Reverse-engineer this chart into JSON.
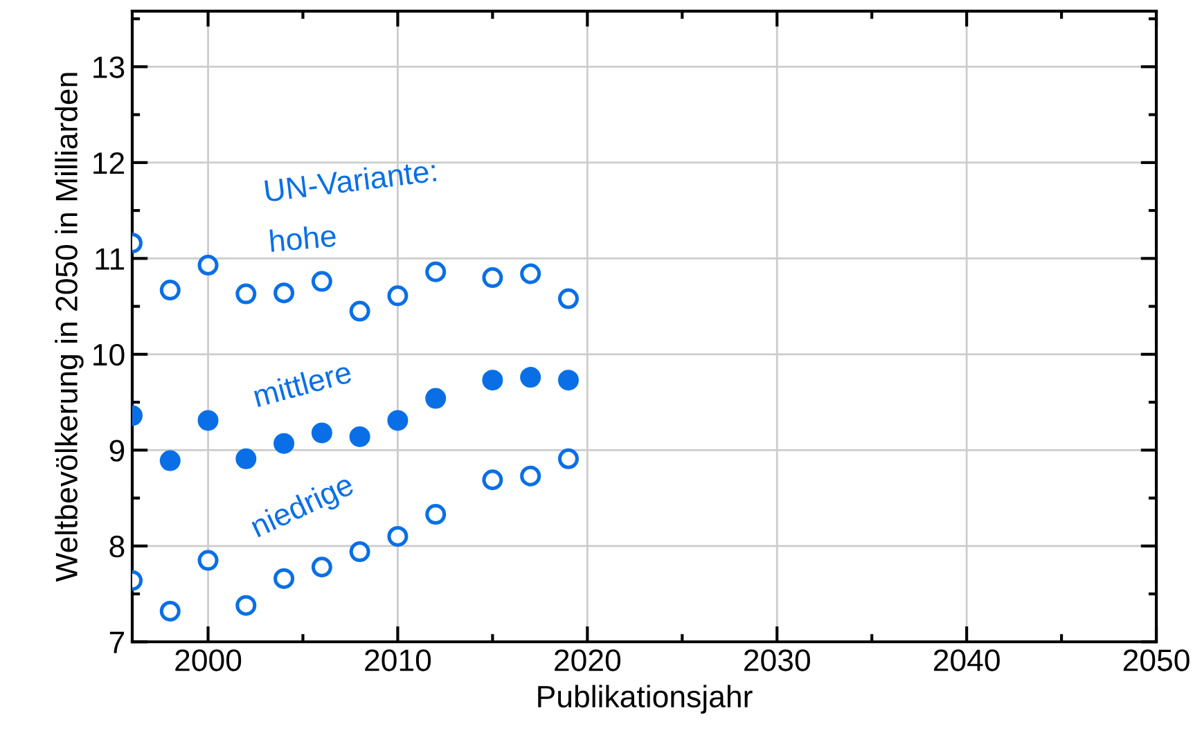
{
  "chart_data": {
    "type": "scatter",
    "xlabel": "Publikationsjahr",
    "ylabel": "Weltbevölkerung in 2050 in Milliarden",
    "legend_title": "UN-Variante:",
    "x": [
      1996,
      1998,
      2000,
      2002,
      2004,
      2006,
      2008,
      2010,
      2012,
      2015,
      2017,
      2019
    ],
    "series": [
      {
        "name": "hohe",
        "color": "#0a6fe6",
        "values": [
          11.16,
          10.67,
          10.93,
          10.63,
          10.64,
          10.76,
          10.45,
          10.61,
          10.86,
          10.8,
          10.84,
          10.58
        ]
      },
      {
        "name": "mittlere",
        "color": "#0a6fe6",
        "values": [
          9.36,
          8.89,
          9.31,
          8.91,
          9.07,
          9.18,
          9.14,
          9.31,
          9.54,
          9.73,
          9.76,
          9.73
        ]
      },
      {
        "name": "niedrige",
        "color": "#0a6fe6",
        "values": [
          7.64,
          7.32,
          7.85,
          7.38,
          7.66,
          7.78,
          7.94,
          8.1,
          8.33,
          8.69,
          8.73,
          8.91
        ]
      }
    ],
    "xlim": [
      1996,
      2050
    ],
    "ylim": [
      7,
      13.58
    ],
    "xticks": [
      2000,
      {
        "value": 2005,
        "label": null
      },
      2010,
      {
        "value": 2015,
        "label": null
      },
      2020,
      {
        "value": 2025,
        "label": null
      },
      2030,
      {
        "value": 2035,
        "label": null
      },
      2040,
      {
        "value": 2045,
        "label": null
      },
      2050
    ],
    "yticks": [
      7,
      {
        "value": 7.5,
        "label": null
      },
      8,
      {
        "value": 8.5,
        "label": null
      },
      9,
      {
        "value": 9.5,
        "label": null
      },
      10,
      {
        "value": 10.5,
        "label": null
      },
      11,
      {
        "value": 11.5,
        "label": null
      },
      12,
      {
        "value": 12.5,
        "label": null
      },
      13,
      {
        "value": 13.5,
        "label": null
      }
    ],
    "grid": true,
    "marker": "circle"
  }
}
